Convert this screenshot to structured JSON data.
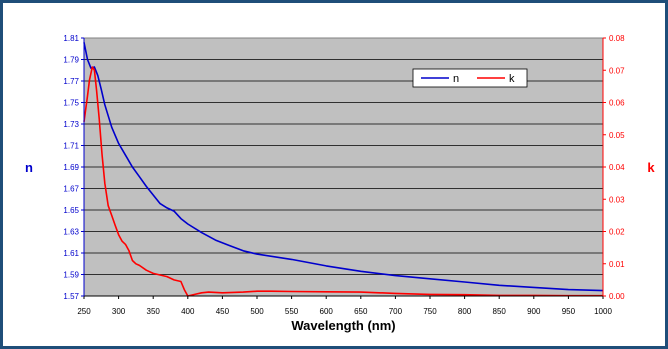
{
  "chart_data": {
    "type": "line",
    "xlabel": "Wavelength (nm)",
    "ylabel_left": "n",
    "ylabel_right": "k",
    "xlim": [
      250,
      1000
    ],
    "ylim_left": [
      1.57,
      1.81
    ],
    "ylim_right": [
      0,
      0.08
    ],
    "x_ticks": [
      "250",
      "300",
      "350",
      "400",
      "450",
      "500",
      "550",
      "600",
      "650",
      "700",
      "750",
      "800",
      "850",
      "900",
      "950",
      "1000"
    ],
    "y_left_ticks": [
      "1.57",
      "1.59",
      "1.61",
      "1.63",
      "1.65",
      "1.67",
      "1.69",
      "1.71",
      "1.73",
      "1.75",
      "1.77",
      "1.79",
      "1.81"
    ],
    "y_right_ticks": [
      "0.00",
      "0.01",
      "0.02",
      "0.03",
      "0.04",
      "0.05",
      "0.06",
      "0.07",
      "0.08"
    ],
    "grid": "horizontal",
    "legend_position": "top-right",
    "colors": {
      "n": "#0000cc",
      "k": "#ff0000",
      "plot_bg": "#c0c0c0",
      "grid": "#000000",
      "border": "#1f4e79"
    },
    "series": [
      {
        "name": "n",
        "axis": "left",
        "x": [
          250,
          255,
          260,
          265,
          270,
          275,
          280,
          290,
          300,
          310,
          320,
          330,
          340,
          350,
          360,
          370,
          380,
          390,
          400,
          420,
          440,
          460,
          480,
          500,
          550,
          600,
          650,
          700,
          750,
          800,
          850,
          900,
          950,
          1000
        ],
        "y": [
          1.806,
          1.79,
          1.782,
          1.783,
          1.775,
          1.762,
          1.748,
          1.727,
          1.712,
          1.701,
          1.69,
          1.681,
          1.672,
          1.664,
          1.656,
          1.652,
          1.649,
          1.642,
          1.637,
          1.629,
          1.622,
          1.617,
          1.612,
          1.609,
          1.604,
          1.598,
          1.593,
          1.589,
          1.586,
          1.583,
          1.58,
          1.578,
          1.576,
          1.575
        ]
      },
      {
        "name": "k",
        "axis": "right",
        "x": [
          250,
          255,
          258,
          262,
          265,
          268,
          272,
          276,
          280,
          285,
          290,
          295,
          300,
          305,
          310,
          315,
          320,
          325,
          330,
          340,
          350,
          360,
          370,
          380,
          390,
          395,
          400,
          410,
          420,
          430,
          450,
          480,
          500,
          520,
          550,
          600,
          650,
          700,
          750,
          800,
          850,
          900,
          950,
          1000
        ],
        "y": [
          0.054,
          0.062,
          0.067,
          0.071,
          0.07,
          0.064,
          0.055,
          0.044,
          0.035,
          0.028,
          0.025,
          0.022,
          0.019,
          0.017,
          0.016,
          0.014,
          0.011,
          0.01,
          0.0095,
          0.008,
          0.007,
          0.0065,
          0.006,
          0.005,
          0.0045,
          0.002,
          0.0,
          0.0005,
          0.001,
          0.0012,
          0.001,
          0.0012,
          0.0015,
          0.0015,
          0.0014,
          0.0013,
          0.0012,
          0.0008,
          0.0005,
          0.0004,
          0.0002,
          0.0002,
          0.0001,
          0.0001
        ]
      }
    ]
  }
}
